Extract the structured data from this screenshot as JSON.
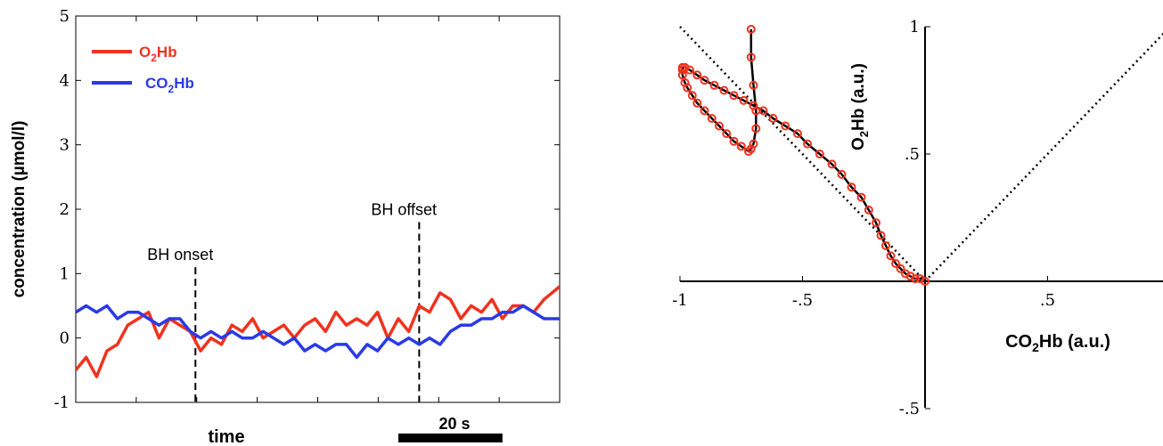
{
  "chart_data": [
    {
      "type": "line",
      "title": "",
      "xlabel": "time",
      "ylabel": "concentration (µmol/l)",
      "ylim": [
        -1,
        5
      ],
      "yticks": [
        -1,
        0,
        1,
        2,
        3,
        4,
        5
      ],
      "grid": false,
      "legend_position": "top-left",
      "x_units": "seconds (approx.)",
      "xlim": [
        0,
        93
      ],
      "scale_bar": {
        "label": "20 s",
        "length": 20
      },
      "legend": [
        {
          "label_main": "O",
          "label_sub": "2",
          "label_tail": "Hb",
          "color": "#f0321e"
        },
        {
          "label_main": "CO",
          "label_sub": "2",
          "label_tail": "Hb",
          "color": "#2a3ae6"
        }
      ],
      "annotations": [
        {
          "text": "BH onset",
          "x": 23
        },
        {
          "text": "BH offset",
          "x": 66
        }
      ],
      "series": [
        {
          "name": "O2Hb",
          "color": "#f0321e",
          "x": [
            0,
            2,
            4,
            6,
            8,
            10,
            12,
            14,
            16,
            18,
            20,
            22,
            24,
            26,
            28,
            30,
            32,
            34,
            36,
            38,
            40,
            42,
            44,
            46,
            48,
            50,
            52,
            54,
            56,
            58,
            60,
            62,
            64,
            66,
            68,
            70,
            72,
            74,
            76,
            78,
            80,
            82,
            84,
            86,
            88,
            90,
            93
          ],
          "values": [
            -0.5,
            -0.3,
            -0.6,
            -0.2,
            -0.1,
            0.2,
            0.3,
            0.4,
            0.0,
            0.3,
            0.2,
            0.1,
            -0.2,
            0.0,
            -0.1,
            0.2,
            0.1,
            0.3,
            0.0,
            0.1,
            0.2,
            0.0,
            0.2,
            0.3,
            0.1,
            0.4,
            0.2,
            0.3,
            0.2,
            0.4,
            0.0,
            0.3,
            0.1,
            0.5,
            0.4,
            0.7,
            0.6,
            0.3,
            0.5,
            0.4,
            0.6,
            0.3,
            0.5,
            0.5,
            0.4,
            0.6,
            0.8
          ]
        },
        {
          "name": "CO2Hb",
          "color": "#2a3ae6",
          "x": [
            0,
            2,
            4,
            6,
            8,
            10,
            12,
            14,
            16,
            18,
            20,
            22,
            24,
            26,
            28,
            30,
            32,
            34,
            36,
            38,
            40,
            42,
            44,
            46,
            48,
            50,
            52,
            54,
            56,
            58,
            60,
            62,
            64,
            66,
            68,
            70,
            72,
            74,
            76,
            78,
            80,
            82,
            84,
            86,
            88,
            90,
            93
          ],
          "values": [
            0.4,
            0.5,
            0.4,
            0.5,
            0.3,
            0.4,
            0.4,
            0.3,
            0.2,
            0.3,
            0.3,
            0.1,
            0.0,
            0.1,
            0.0,
            0.1,
            0.0,
            0.0,
            0.1,
            0.0,
            -0.1,
            0.0,
            -0.2,
            -0.1,
            -0.2,
            -0.1,
            -0.1,
            -0.3,
            -0.1,
            -0.2,
            0.0,
            -0.1,
            0.0,
            -0.1,
            0.0,
            -0.1,
            0.1,
            0.2,
            0.2,
            0.3,
            0.3,
            0.4,
            0.4,
            0.5,
            0.4,
            0.3,
            0.3
          ]
        }
      ]
    },
    {
      "type": "scatter",
      "title": "",
      "xlabel_main": "CO",
      "xlabel_sub": "2",
      "xlabel_tail": "Hb (a.u.)",
      "ylabel_main": "O",
      "ylabel_sub": "2",
      "ylabel_tail": "Hb (a.u.)",
      "xlim": [
        -1,
        1
      ],
      "ylim": [
        -0.5,
        1
      ],
      "xticks": [
        -1,
        -0.5,
        0.5
      ],
      "yticks": [
        0.5,
        1,
        -0.5
      ],
      "grid": false,
      "reference_lines": [
        {
          "x": [
            -1,
            0
          ],
          "y": [
            1,
            0
          ],
          "style": "dotted"
        },
        {
          "x": [
            0,
            1
          ],
          "y": [
            0,
            1
          ],
          "style": "dotted"
        }
      ],
      "series": [
        {
          "name": "trajectory",
          "line_color": "#000000",
          "marker_color": "#f0321e",
          "x": [
            -0.71,
            -0.71,
            -0.7,
            -0.69,
            -0.69,
            -0.7,
            -0.71,
            -0.72,
            -0.75,
            -0.78,
            -0.81,
            -0.84,
            -0.87,
            -0.9,
            -0.93,
            -0.95,
            -0.97,
            -0.98,
            -0.99,
            -0.99,
            -0.99,
            -0.98,
            -0.96,
            -0.93,
            -0.9,
            -0.86,
            -0.82,
            -0.78,
            -0.74,
            -0.7,
            -0.66,
            -0.62,
            -0.57,
            -0.52,
            -0.48,
            -0.43,
            -0.38,
            -0.34,
            -0.3,
            -0.26,
            -0.23,
            -0.2,
            -0.18,
            -0.16,
            -0.14,
            -0.12,
            -0.1,
            -0.08,
            -0.06,
            -0.04,
            -0.02,
            0
          ],
          "y": [
            0.99,
            0.88,
            0.77,
            0.67,
            0.6,
            0.54,
            0.52,
            0.51,
            0.53,
            0.55,
            0.58,
            0.61,
            0.64,
            0.67,
            0.7,
            0.73,
            0.76,
            0.78,
            0.81,
            0.83,
            0.84,
            0.84,
            0.83,
            0.81,
            0.79,
            0.77,
            0.75,
            0.73,
            0.71,
            0.69,
            0.67,
            0.64,
            0.61,
            0.58,
            0.54,
            0.5,
            0.46,
            0.42,
            0.37,
            0.33,
            0.28,
            0.23,
            0.18,
            0.14,
            0.1,
            0.07,
            0.05,
            0.03,
            0.02,
            0.01,
            0.01,
            0.0
          ]
        }
      ]
    }
  ]
}
